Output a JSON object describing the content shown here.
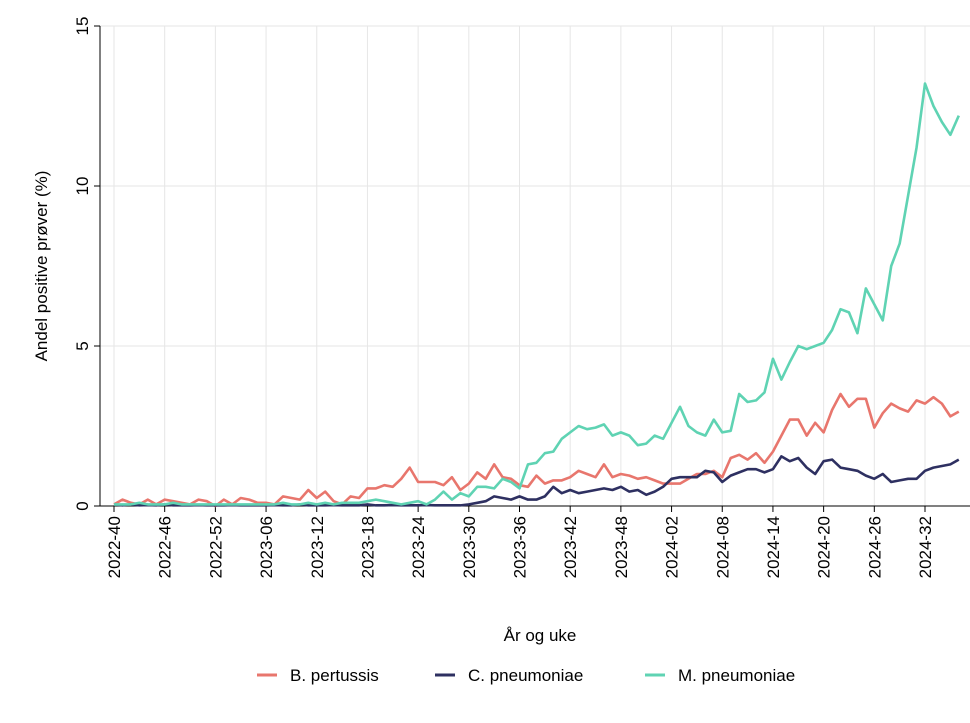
{
  "chart_data": {
    "type": "line",
    "xlabel": "År og uke",
    "ylabel": "Andel positive prøver (%)",
    "categories": [
      "2022-40",
      null,
      null,
      null,
      null,
      null,
      "2022-46",
      null,
      null,
      null,
      null,
      null,
      "2022-52",
      null,
      null,
      null,
      null,
      null,
      "2023-06",
      null,
      null,
      null,
      null,
      null,
      "2023-12",
      null,
      null,
      null,
      null,
      null,
      "2023-18",
      null,
      null,
      null,
      null,
      null,
      "2023-24",
      null,
      null,
      null,
      null,
      null,
      "2023-30",
      null,
      null,
      null,
      null,
      null,
      "2023-36",
      null,
      null,
      null,
      null,
      null,
      "2023-42",
      null,
      null,
      null,
      null,
      null,
      "2023-48",
      null,
      null,
      null,
      null,
      null,
      "2024-02",
      null,
      null,
      null,
      null,
      null,
      "2024-08",
      null,
      null,
      null,
      null,
      null,
      "2024-14",
      null,
      null,
      null,
      null,
      null,
      "2024-20",
      null,
      null,
      null,
      null,
      null,
      "2024-26",
      null,
      null,
      null,
      null,
      null,
      "2024-32",
      null,
      null,
      null,
      null
    ],
    "series": [
      {
        "name": "B. pertussis",
        "color": "#e8766d",
        "values": [
          0.05,
          0.2,
          0.1,
          0.05,
          0.2,
          0.05,
          0.2,
          0.15,
          0.1,
          0.05,
          0.2,
          0.15,
          0.0,
          0.2,
          0.05,
          0.25,
          0.2,
          0.1,
          0.1,
          0.05,
          0.3,
          0.25,
          0.2,
          0.5,
          0.25,
          0.45,
          0.15,
          0.05,
          0.3,
          0.25,
          0.55,
          0.55,
          0.65,
          0.6,
          0.85,
          1.2,
          0.75,
          0.75,
          0.75,
          0.65,
          0.9,
          0.5,
          0.7,
          1.05,
          0.85,
          1.3,
          0.9,
          0.85,
          0.65,
          0.6,
          0.95,
          0.7,
          0.8,
          0.8,
          0.9,
          1.1,
          1.0,
          0.9,
          1.3,
          0.9,
          1.0,
          0.95,
          0.85,
          0.9,
          0.8,
          0.7,
          0.7,
          0.7,
          0.85,
          1.0,
          1.0,
          1.1,
          0.9,
          1.5,
          1.6,
          1.45,
          1.65,
          1.35,
          1.7,
          2.2,
          2.7,
          2.7,
          2.2,
          2.6,
          2.3,
          3.0,
          3.5,
          3.1,
          3.35,
          3.35,
          2.45,
          2.9,
          3.2,
          3.05,
          2.95,
          3.3,
          3.2,
          3.4,
          3.2,
          2.8,
          2.95
        ]
      },
      {
        "name": "C. pneumoniae",
        "color": "#2e3061",
        "values": [
          0.05,
          0.02,
          0.05,
          0.02,
          0.03,
          0.02,
          0.05,
          0.02,
          0.02,
          0.02,
          0.03,
          0.02,
          0.02,
          0.02,
          0.03,
          0.02,
          0.02,
          0.02,
          0.02,
          0.03,
          0.02,
          0.02,
          0.05,
          0.02,
          0.02,
          0.02,
          0.03,
          0.02,
          0.02,
          0.02,
          0.05,
          0.02,
          0.02,
          0.03,
          0.02,
          0.02,
          0.02,
          0.03,
          0.02,
          0.02,
          0.02,
          0.02,
          0.05,
          0.1,
          0.15,
          0.3,
          0.25,
          0.2,
          0.3,
          0.2,
          0.2,
          0.3,
          0.6,
          0.4,
          0.5,
          0.4,
          0.45,
          0.5,
          0.55,
          0.5,
          0.6,
          0.45,
          0.5,
          0.35,
          0.45,
          0.6,
          0.85,
          0.9,
          0.9,
          0.9,
          1.1,
          1.05,
          0.75,
          0.95,
          1.05,
          1.15,
          1.15,
          1.05,
          1.15,
          1.55,
          1.4,
          1.5,
          1.2,
          1.0,
          1.4,
          1.45,
          1.2,
          1.15,
          1.1,
          0.95,
          0.85,
          1.0,
          0.75,
          0.8,
          0.85,
          0.85,
          1.1,
          1.2,
          1.25,
          1.3,
          1.45
        ]
      },
      {
        "name": "M. pneumoniae",
        "color": "#5fd3b3",
        "values": [
          0.05,
          0.05,
          0.05,
          0.1,
          0.05,
          0.05,
          0.05,
          0.1,
          0.05,
          0.05,
          0.05,
          0.05,
          0.05,
          0.05,
          0.05,
          0.05,
          0.05,
          0.05,
          0.05,
          0.05,
          0.1,
          0.05,
          0.05,
          0.1,
          0.05,
          0.1,
          0.05,
          0.1,
          0.1,
          0.1,
          0.15,
          0.2,
          0.15,
          0.1,
          0.05,
          0.1,
          0.15,
          0.05,
          0.2,
          0.45,
          0.2,
          0.4,
          0.3,
          0.6,
          0.6,
          0.55,
          0.85,
          0.75,
          0.55,
          1.3,
          1.35,
          1.65,
          1.7,
          2.1,
          2.3,
          2.5,
          2.4,
          2.45,
          2.55,
          2.2,
          2.3,
          2.2,
          1.9,
          1.95,
          2.2,
          2.1,
          2.6,
          3.1,
          2.5,
          2.3,
          2.2,
          2.7,
          2.3,
          2.35,
          3.5,
          3.25,
          3.3,
          3.55,
          4.6,
          3.95,
          4.5,
          5.0,
          4.9,
          5.0,
          5.1,
          5.5,
          6.15,
          6.05,
          5.4,
          6.8,
          6.3,
          5.8,
          7.5,
          8.2,
          9.7,
          11.2,
          13.2,
          12.5,
          12.0,
          11.6,
          12.2
        ]
      }
    ],
    "ylim": [
      0,
      15
    ],
    "yticks": [
      0,
      5,
      10,
      15
    ],
    "grid": true
  }
}
